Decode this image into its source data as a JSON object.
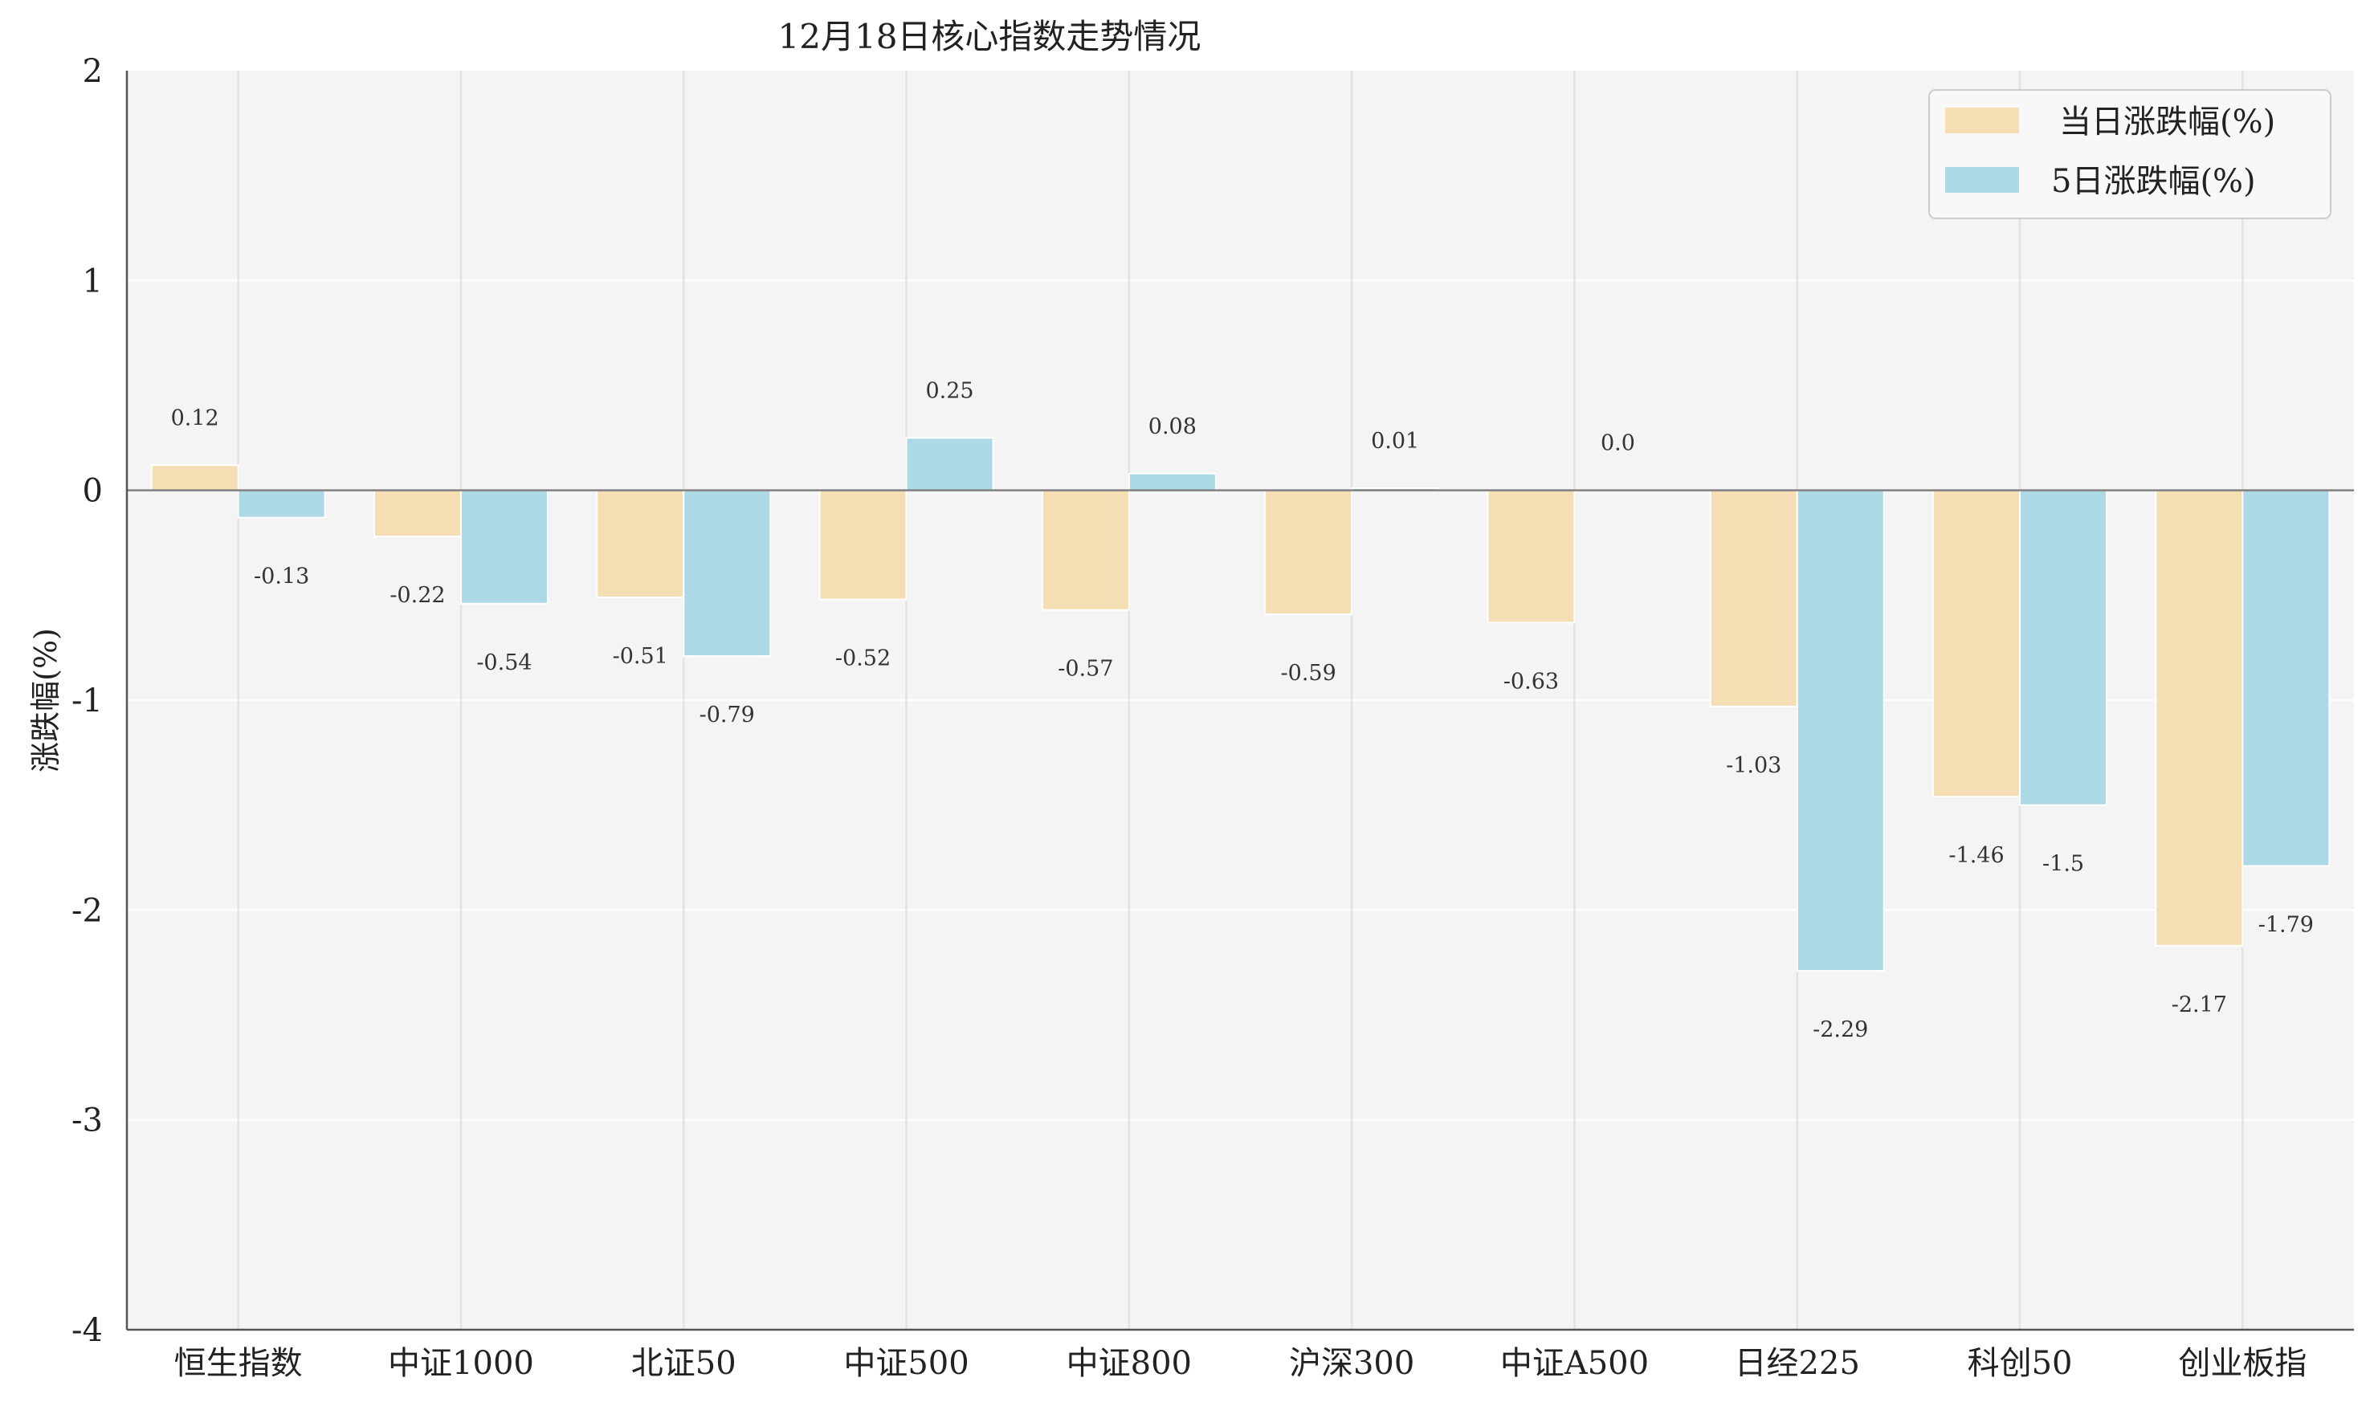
{
  "chart_data": {
    "type": "bar",
    "title": "12月18日核心指数走势情况",
    "xlabel": "",
    "ylabel": "涨跌幅(%)",
    "ylim": [
      -4,
      2
    ],
    "yticks": [
      "2",
      "1",
      "0",
      "-1",
      "-2",
      "-3",
      "-4"
    ],
    "categories": [
      "恒生指数",
      "中证1000",
      "北证50",
      "中证500",
      "中证800",
      "沪深300",
      "中证A500",
      "日经225",
      "科创50",
      "创业板指"
    ],
    "series": [
      {
        "name": "当日涨跌幅(%)",
        "color": "#f5deb3",
        "values": [
          0.12,
          -0.22,
          -0.51,
          -0.52,
          -0.57,
          -0.59,
          -0.63,
          -1.03,
          -1.46,
          -2.17
        ],
        "labels": [
          "0.12",
          "-0.22",
          "-0.51",
          "-0.52",
          "-0.57",
          "-0.59",
          "-0.63",
          "-1.03",
          "-1.46",
          "-2.17"
        ]
      },
      {
        "name": "5日涨跌幅(%)",
        "color": "#add8e6",
        "values": [
          -0.13,
          -0.54,
          -0.79,
          0.25,
          0.08,
          0.01,
          0.0,
          -2.29,
          -1.5,
          -1.79
        ],
        "labels": [
          "-0.13",
          "-0.54",
          "-0.79",
          "0.25",
          "0.08",
          "0.01",
          "0.0",
          "-2.29",
          "-1.5",
          "-1.79"
        ]
      }
    ],
    "grid": true,
    "legend_position": "top-right",
    "zero_line": true
  }
}
